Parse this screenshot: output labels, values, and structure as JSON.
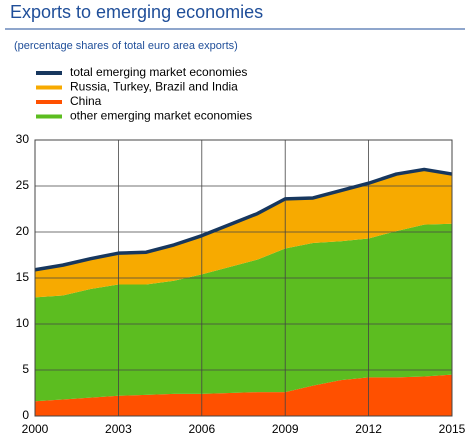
{
  "chart_data": {
    "type": "stacked-area",
    "title": "Exports to emerging economies",
    "subtitle": "(percentage shares of total euro area exports)",
    "x": [
      2000,
      2001,
      2002,
      2003,
      2004,
      2005,
      2006,
      2007,
      2008,
      2009,
      2010,
      2011,
      2012,
      2013,
      2014,
      2015
    ],
    "series": [
      {
        "name": "China",
        "color": "#ff5000",
        "type": "area",
        "values": [
          1.6,
          1.8,
          2.0,
          2.2,
          2.3,
          2.4,
          2.4,
          2.5,
          2.6,
          2.6,
          3.3,
          3.9,
          4.2,
          4.2,
          4.3,
          4.5
        ]
      },
      {
        "name": "other emerging market economies",
        "color": "#5cbd20",
        "type": "area",
        "values": [
          11.3,
          11.3,
          11.8,
          12.1,
          12.0,
          12.3,
          13.0,
          13.7,
          14.4,
          15.6,
          15.5,
          15.1,
          15.1,
          15.9,
          16.5,
          16.4
        ]
      },
      {
        "name": "Russia, Turkey, Brazil and India",
        "color": "#f7aa00",
        "type": "area",
        "values": [
          3.0,
          3.3,
          3.3,
          3.4,
          3.5,
          3.9,
          4.2,
          4.6,
          5.0,
          5.4,
          4.9,
          5.5,
          6.0,
          6.2,
          6.0,
          5.4
        ]
      },
      {
        "name": "total emerging market economies",
        "color": "#17375e",
        "type": "line",
        "values": [
          15.9,
          16.4,
          17.1,
          17.7,
          17.8,
          18.6,
          19.6,
          20.8,
          22.0,
          23.6,
          23.7,
          24.5,
          25.3,
          26.3,
          26.8,
          26.3
        ]
      }
    ],
    "xlim": [
      2000,
      2015
    ],
    "xticks": [
      2000,
      2003,
      2006,
      2009,
      2012,
      2015
    ],
    "ylim": [
      0,
      30
    ],
    "yticks": [
      0,
      5,
      10,
      15,
      20,
      25,
      30
    ],
    "grid": true
  }
}
